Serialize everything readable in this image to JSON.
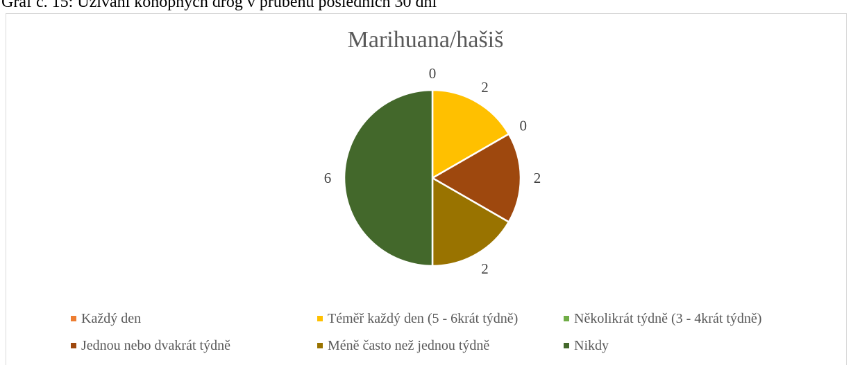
{
  "document": {
    "caption": "Graf č. 15: Užívání konopných drog v průběhu posledních 30 dní"
  },
  "chart_data": {
    "type": "pie",
    "title": "Marihuana/hašiš",
    "legend_position": "bottom",
    "slices": [
      {
        "name": "Každý den",
        "value": 0,
        "color": "#ED7D31"
      },
      {
        "name": "Téměř každý den (5 - 6krát týdně)",
        "value": 2,
        "color": "#FFC000"
      },
      {
        "name": "Několikrát týdně (3 - 4krát týdně)",
        "value": 0,
        "color": "#70AD47"
      },
      {
        "name": "Jednou nebo dvakrát týdně",
        "value": 2,
        "color": "#9E480E"
      },
      {
        "name": "Méně často než jednou týdně",
        "value": 2,
        "color": "#997300"
      },
      {
        "name": "Nikdy",
        "value": 6,
        "color": "#43682B"
      }
    ]
  }
}
